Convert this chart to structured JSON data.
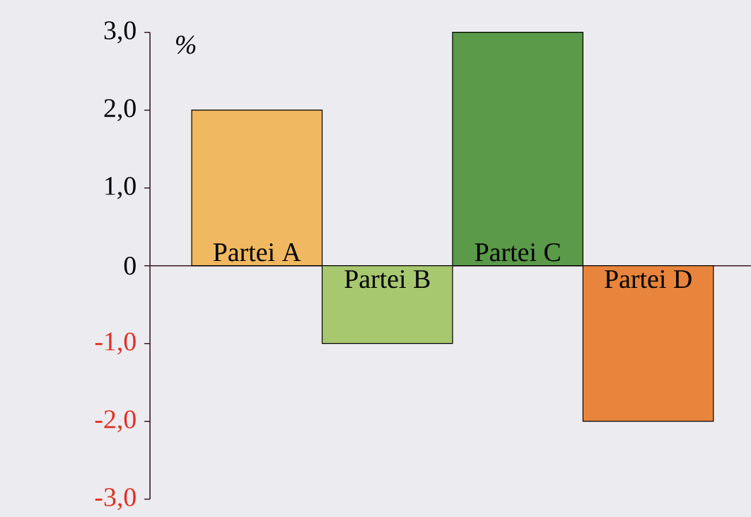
{
  "chart_data": {
    "type": "bar",
    "ylabel": "%",
    "categories": [
      "Partei A",
      "Partei B",
      "Partei C",
      "Partei D"
    ],
    "values": [
      2.0,
      -1.0,
      3.0,
      -2.0
    ],
    "colors": [
      "#f0b860",
      "#a8c870",
      "#5a9a48",
      "#e8843c"
    ],
    "ylim": [
      -3.0,
      3.0
    ],
    "yticks": [
      {
        "value": -3,
        "label": "-3,0"
      },
      {
        "value": -2,
        "label": "-2,0"
      },
      {
        "value": -1,
        "label": "-1,0"
      },
      0,
      {
        "value": 1,
        "label": "1,0"
      },
      {
        "value": 2,
        "label": "2,0"
      },
      {
        "value": 3,
        "label": "3,0"
      }
    ]
  }
}
